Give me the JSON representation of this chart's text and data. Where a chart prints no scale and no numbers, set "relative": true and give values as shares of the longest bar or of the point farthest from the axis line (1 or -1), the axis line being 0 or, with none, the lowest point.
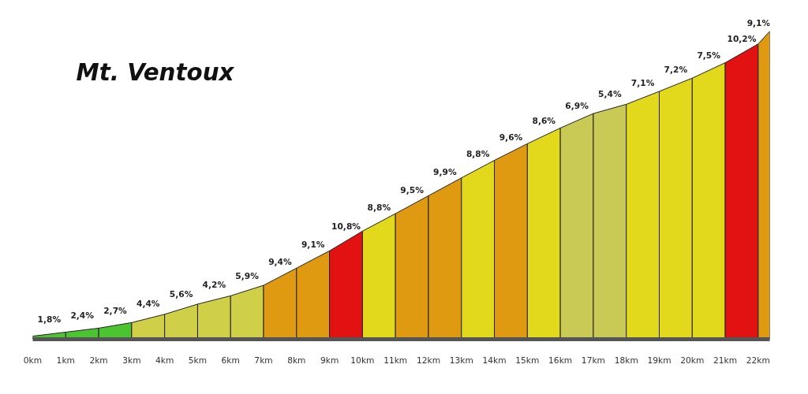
{
  "chart_data": {
    "type": "area",
    "title": "Mt. Ventoux",
    "relative": true,
    "series": [
      {
        "color": "#4cc431",
        "x": [
          0,
          1
        ],
        "values": [
          0.01,
          0.023
        ]
      },
      {
        "color": "#4cc431",
        "x": [
          1,
          2
        ],
        "values": [
          0.023,
          0.036
        ]
      },
      {
        "color": "#4cc431",
        "x": [
          2,
          3
        ],
        "values": [
          0.036,
          0.054
        ]
      },
      {
        "color": "#cfcf48",
        "x": [
          3,
          4
        ],
        "values": [
          0.054,
          0.081
        ]
      },
      {
        "color": "#cfcf48",
        "x": [
          4,
          5
        ],
        "values": [
          0.081,
          0.114
        ]
      },
      {
        "color": "#cfcf48",
        "x": [
          5,
          6
        ],
        "values": [
          0.114,
          0.141
        ]
      },
      {
        "color": "#cfcf48",
        "x": [
          6,
          7
        ],
        "values": [
          0.141,
          0.175
        ]
      },
      {
        "color": "#e09a12",
        "x": [
          7,
          8
        ],
        "values": [
          0.175,
          0.231
        ]
      },
      {
        "color": "#e09a12",
        "x": [
          8,
          9
        ],
        "values": [
          0.231,
          0.287
        ]
      },
      {
        "color": "#e31212",
        "x": [
          9,
          10
        ],
        "values": [
          0.287,
          0.351
        ]
      },
      {
        "color": "#e2d81c",
        "x": [
          10,
          11
        ],
        "values": [
          0.351,
          0.408
        ]
      },
      {
        "color": "#e09a12",
        "x": [
          11,
          12
        ],
        "values": [
          0.408,
          0.466
        ]
      },
      {
        "color": "#e09a12",
        "x": [
          12,
          13
        ],
        "values": [
          0.466,
          0.524
        ]
      },
      {
        "color": "#e2d81c",
        "x": [
          13,
          14
        ],
        "values": [
          0.524,
          0.581
        ]
      },
      {
        "color": "#e09a12",
        "x": [
          14,
          15
        ],
        "values": [
          0.581,
          0.635
        ]
      },
      {
        "color": "#e2d81c",
        "x": [
          15,
          16
        ],
        "values": [
          0.635,
          0.686
        ]
      },
      {
        "color": "#c9c955",
        "x": [
          16,
          17
        ],
        "values": [
          0.686,
          0.733
        ]
      },
      {
        "color": "#c9c955",
        "x": [
          17,
          18
        ],
        "values": [
          0.733,
          0.763
        ]
      },
      {
        "color": "#e2d81c",
        "x": [
          18,
          19
        ],
        "values": [
          0.763,
          0.805
        ]
      },
      {
        "color": "#e2d81c",
        "x": [
          19,
          20
        ],
        "values": [
          0.805,
          0.848
        ]
      },
      {
        "color": "#e2d81c",
        "x": [
          20,
          21
        ],
        "values": [
          0.848,
          0.898
        ]
      },
      {
        "color": "#e31212",
        "x": [
          21,
          22
        ],
        "values": [
          0.898,
          0.959
        ]
      },
      {
        "color": "#e09a12",
        "x": [
          22,
          22.35
        ],
        "values": [
          0.959,
          1
        ]
      }
    ],
    "annotations": [
      {
        "text": "1,8%",
        "x": 0.5,
        "y": 0.017
      },
      {
        "text": "2,4%",
        "x": 1.5,
        "y": 0.03
      },
      {
        "text": "2,7%",
        "x": 2.5,
        "y": 0.045
      },
      {
        "text": "4,4%",
        "x": 3.5,
        "y": 0.068
      },
      {
        "text": "5,6%",
        "x": 4.5,
        "y": 0.098
      },
      {
        "text": "4,2%",
        "x": 5.5,
        "y": 0.128
      },
      {
        "text": "5,9%",
        "x": 6.5,
        "y": 0.158
      },
      {
        "text": "9,4%",
        "x": 7.5,
        "y": 0.203
      },
      {
        "text": "9,1%",
        "x": 8.5,
        "y": 0.259
      },
      {
        "text": "10,8%",
        "x": 9.5,
        "y": 0.319
      },
      {
        "text": "8,8%",
        "x": 10.5,
        "y": 0.38
      },
      {
        "text": "9,5%",
        "x": 11.5,
        "y": 0.437
      },
      {
        "text": "9,9%",
        "x": 12.5,
        "y": 0.495
      },
      {
        "text": "8,8%",
        "x": 13.5,
        "y": 0.553
      },
      {
        "text": "9,6%",
        "x": 14.5,
        "y": 0.608
      },
      {
        "text": "8,6%",
        "x": 15.5,
        "y": 0.661
      },
      {
        "text": "6,9%",
        "x": 16.5,
        "y": 0.71
      },
      {
        "text": "5,4%",
        "x": 17.5,
        "y": 0.748
      },
      {
        "text": "7,1%",
        "x": 18.5,
        "y": 0.784
      },
      {
        "text": "7,2%",
        "x": 19.5,
        "y": 0.827
      },
      {
        "text": "7,5%",
        "x": 20.5,
        "y": 0.873
      },
      {
        "text": "10,2%",
        "x": 21.5,
        "y": 0.929
      },
      {
        "text": "9,1%",
        "x": 22.175,
        "y": 0.98
      }
    ],
    "xlim": [
      0,
      22.35
    ],
    "xticks": [
      {
        "value": 0,
        "label": "0km"
      },
      {
        "value": 1,
        "label": "1km"
      },
      {
        "value": 2,
        "label": "2km"
      },
      {
        "value": 3,
        "label": "3km"
      },
      {
        "value": 4,
        "label": "4km"
      },
      {
        "value": 5,
        "label": "5km"
      },
      {
        "value": 6,
        "label": "6km"
      },
      {
        "value": 7,
        "label": "7km"
      },
      {
        "value": 8,
        "label": "8km"
      },
      {
        "value": 9,
        "label": "9km"
      },
      {
        "value": 10,
        "label": "10km"
      },
      {
        "value": 11,
        "label": "11km"
      },
      {
        "value": 12,
        "label": "12km"
      },
      {
        "value": 13,
        "label": "13km"
      },
      {
        "value": 14,
        "label": "14km"
      },
      {
        "value": 15,
        "label": "15km"
      },
      {
        "value": 16,
        "label": "16km"
      },
      {
        "value": 17,
        "label": "17km"
      },
      {
        "value": 18,
        "label": "18km"
      },
      {
        "value": 19,
        "label": "19km"
      },
      {
        "value": 20,
        "label": "20km"
      },
      {
        "value": 21,
        "label": "21km"
      },
      {
        "value": 22,
        "label": "22km"
      }
    ],
    "grid": false
  }
}
